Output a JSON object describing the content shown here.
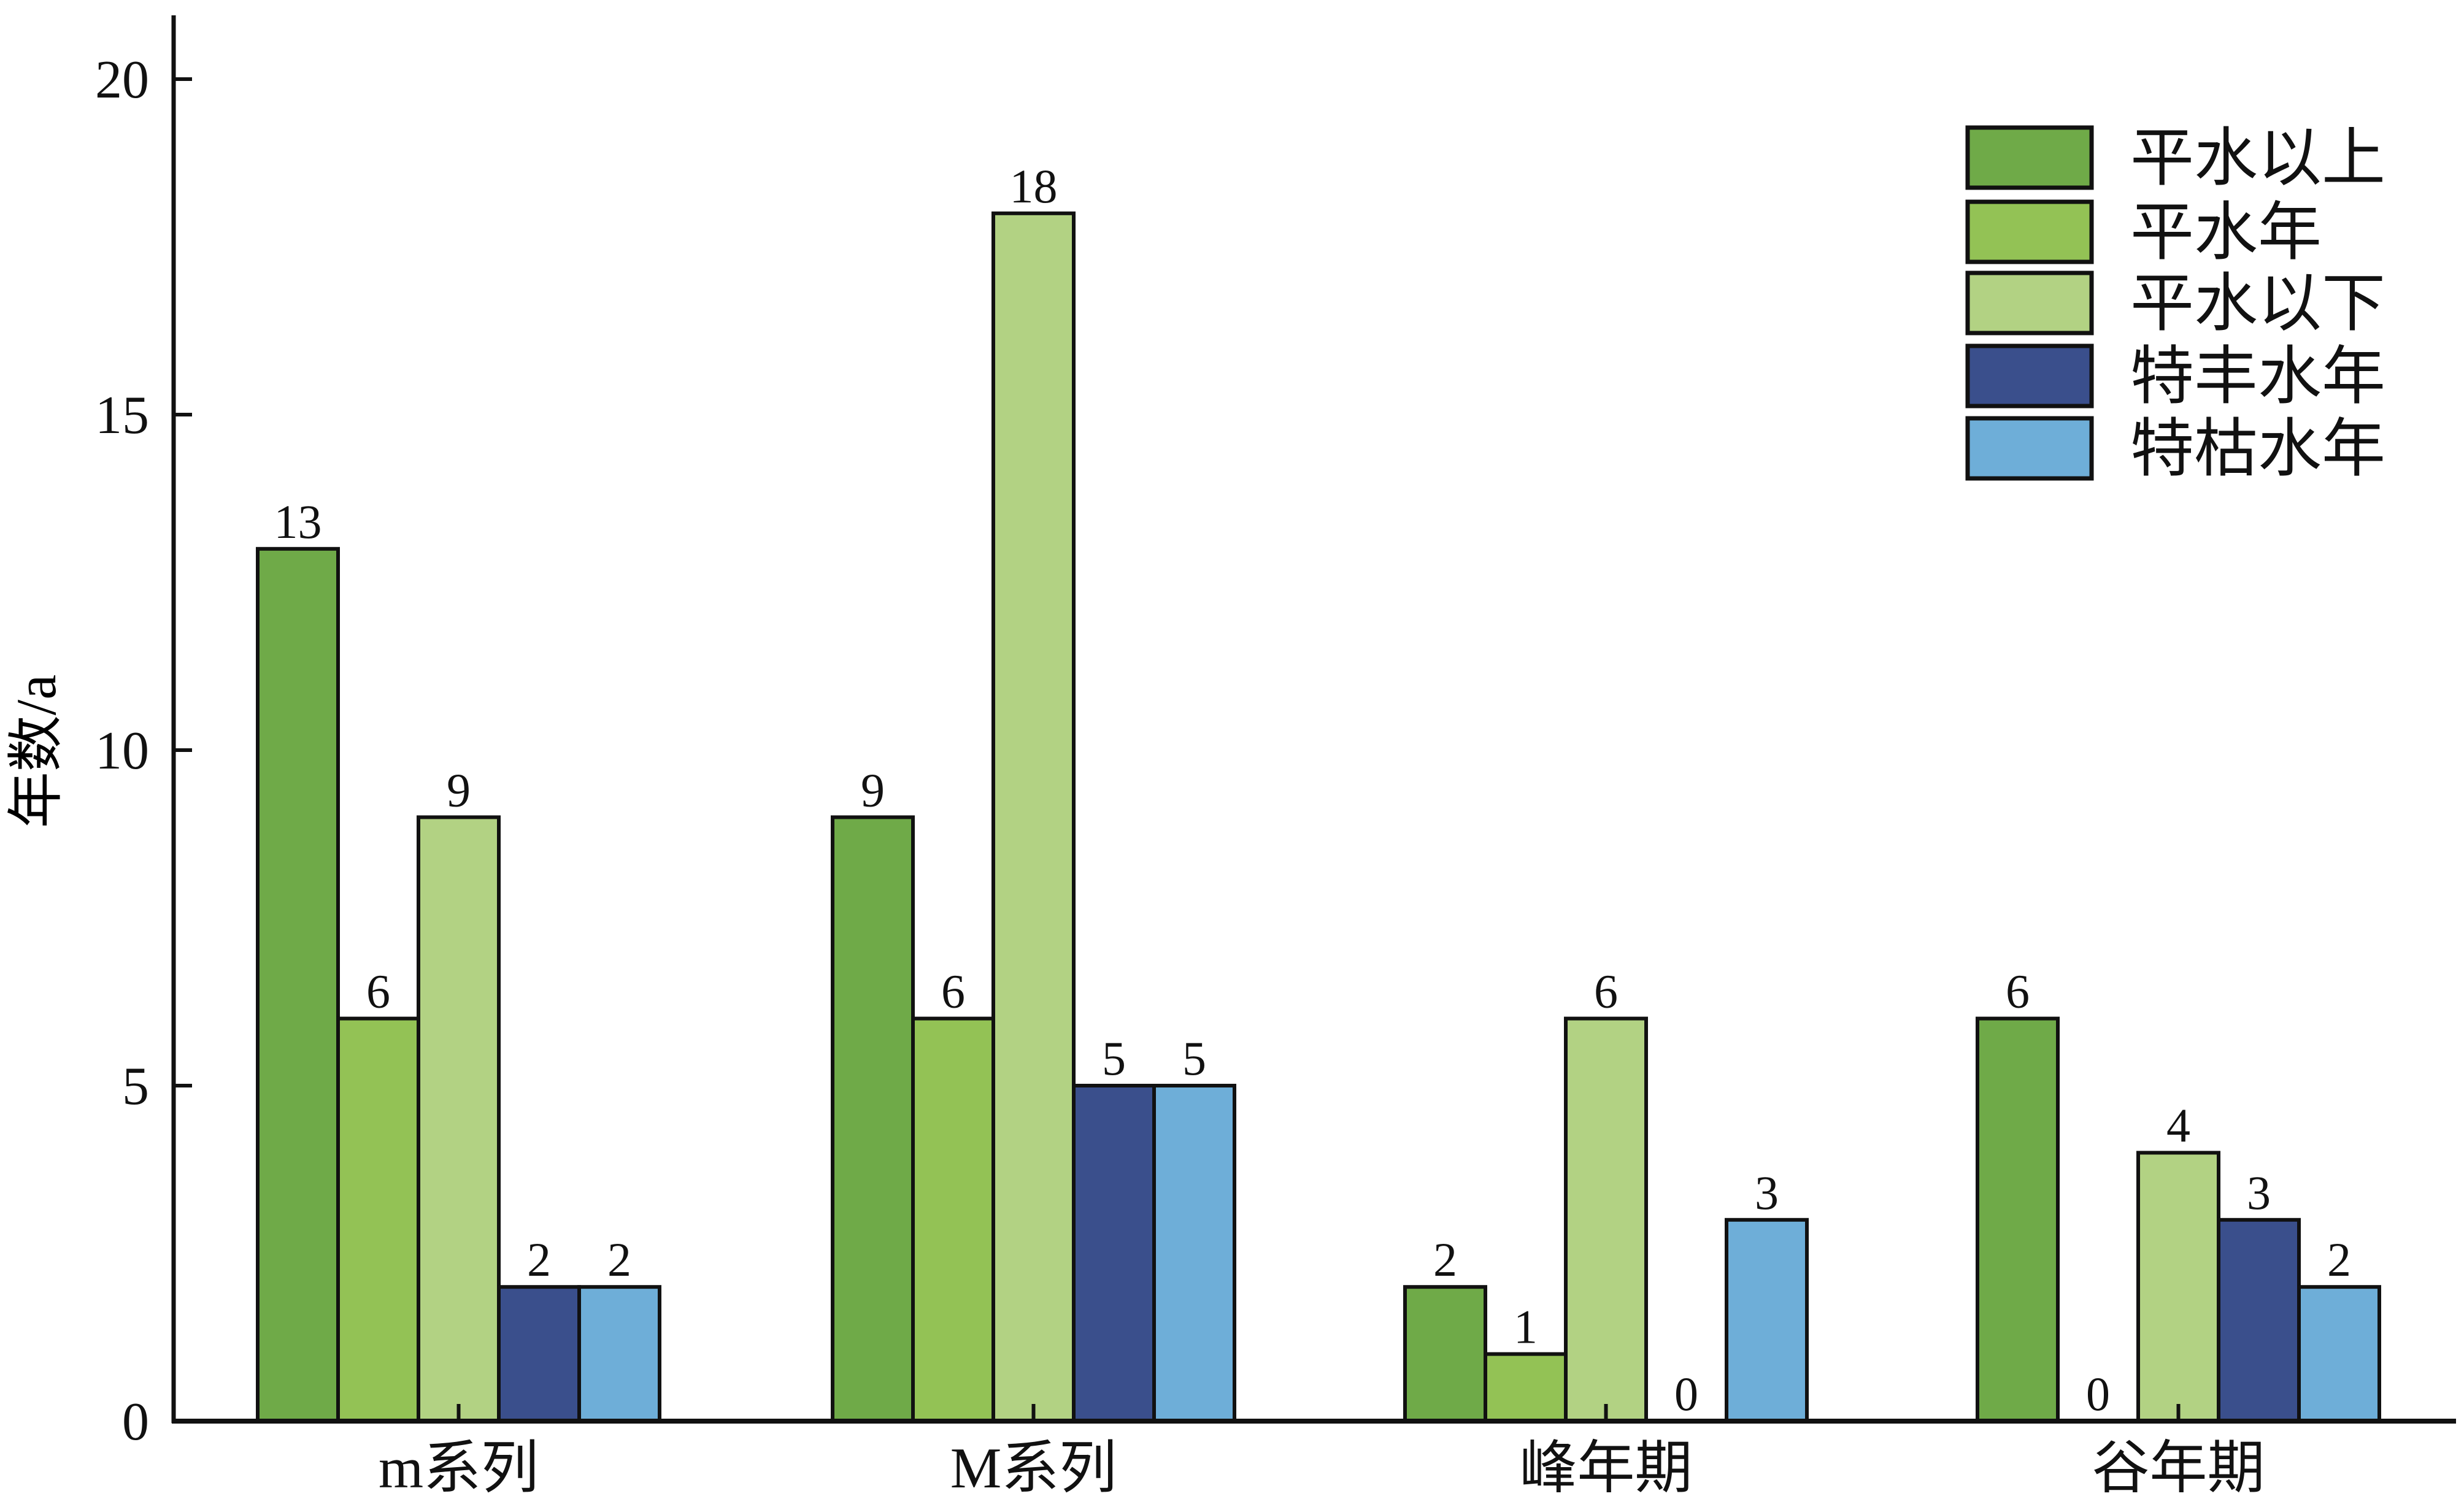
{
  "chart_data": {
    "type": "bar",
    "title": "",
    "xlabel": "",
    "ylabel": "年数/a",
    "ylim": [
      0,
      20
    ],
    "yticks": [
      0,
      5,
      10,
      15,
      20
    ],
    "grid": false,
    "legend_position": "top-right",
    "categories": [
      "m系列",
      "M系列",
      "峰年期",
      "谷年期"
    ],
    "series": [
      {
        "name": "平水以上",
        "color": "#6faa48",
        "values": [
          13,
          9,
          2,
          6
        ]
      },
      {
        "name": "平水年",
        "color": "#93c255",
        "values": [
          6,
          6,
          1,
          0
        ]
      },
      {
        "name": "平水以下",
        "color": "#b2d283",
        "values": [
          9,
          18,
          6,
          4
        ]
      },
      {
        "name": "特丰水年",
        "color": "#3a4f8c",
        "values": [
          2,
          5,
          0,
          3
        ]
      },
      {
        "name": "特枯水年",
        "color": "#6eaed8",
        "values": [
          2,
          5,
          3,
          2
        ]
      }
    ]
  }
}
